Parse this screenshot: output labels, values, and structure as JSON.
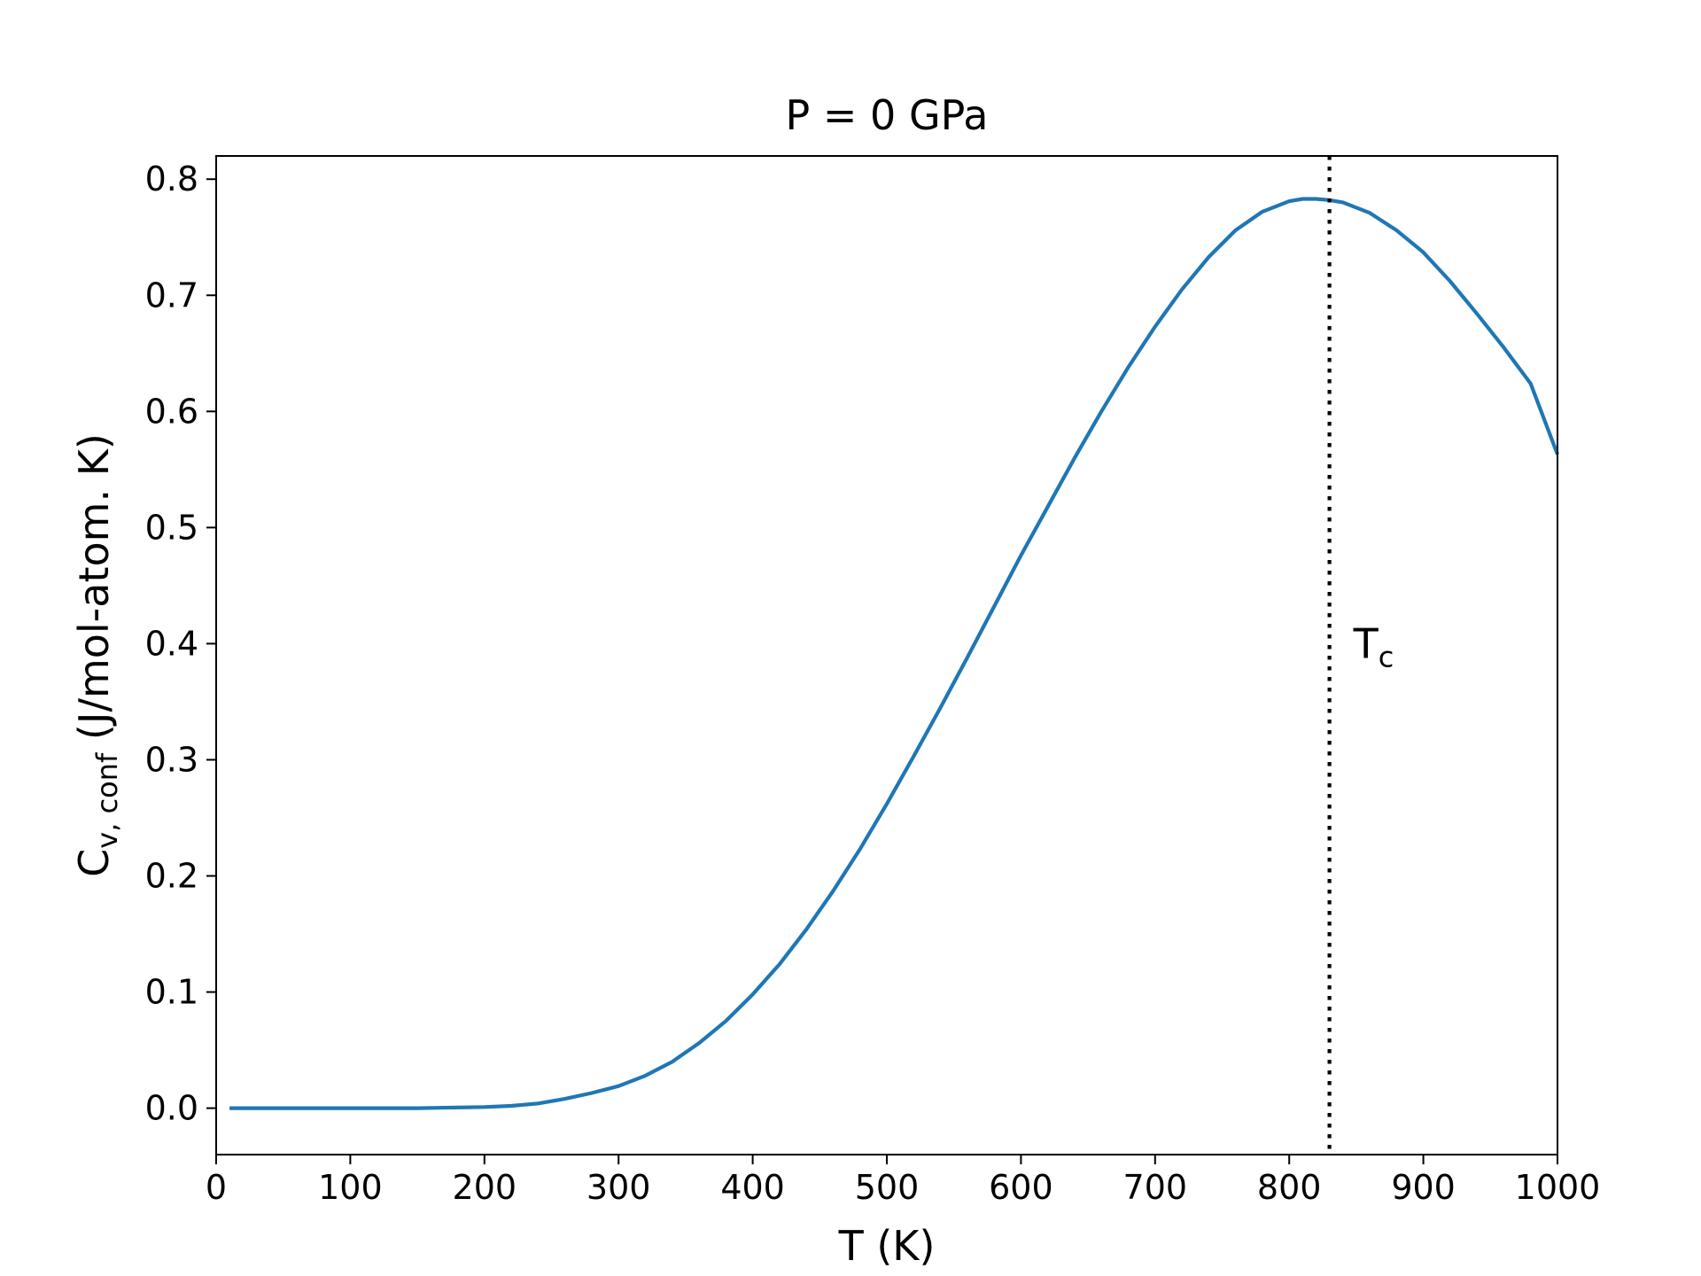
{
  "chart_data": {
    "type": "line",
    "title": "P = 0 GPa",
    "xlabel": "T (K)",
    "ylabel": {
      "main": "C",
      "sub": "v, conf",
      "rest": " (J/mol-atom. K)"
    },
    "xlim": [
      0,
      1000
    ],
    "ylim": [
      -0.04,
      0.82
    ],
    "xticks": [
      0,
      100,
      200,
      300,
      400,
      500,
      600,
      700,
      800,
      900,
      1000
    ],
    "xtick_labels": [
      "0",
      "100",
      "200",
      "300",
      "400",
      "500",
      "600",
      "700",
      "800",
      "900",
      "1000"
    ],
    "yticks": [
      0.0,
      0.1,
      0.2,
      0.3,
      0.4,
      0.5,
      0.6,
      0.7,
      0.8
    ],
    "ytick_labels": [
      "0.0",
      "0.1",
      "0.2",
      "0.3",
      "0.4",
      "0.5",
      "0.6",
      "0.7",
      "0.8"
    ],
    "grid": false,
    "colors": {
      "series": "#1f77b4",
      "annotation_line": "#000000"
    },
    "series": [
      {
        "x": [
          10,
          50,
          100,
          150,
          200,
          220,
          240,
          260,
          280,
          300,
          320,
          340,
          360,
          380,
          400,
          420,
          440,
          460,
          480,
          500,
          520,
          540,
          560,
          580,
          600,
          620,
          640,
          660,
          680,
          700,
          720,
          740,
          760,
          780,
          800,
          810,
          820,
          830,
          840,
          860,
          880,
          900,
          920,
          940,
          960,
          980,
          1000
        ],
        "y": [
          0.0,
          0.0,
          0.0,
          0.0,
          0.001,
          0.002,
          0.004,
          0.008,
          0.013,
          0.019,
          0.028,
          0.04,
          0.056,
          0.075,
          0.098,
          0.124,
          0.154,
          0.187,
          0.223,
          0.262,
          0.303,
          0.345,
          0.388,
          0.432,
          0.476,
          0.518,
          0.56,
          0.6,
          0.638,
          0.673,
          0.705,
          0.733,
          0.756,
          0.772,
          0.781,
          0.783,
          0.783,
          0.782,
          0.78,
          0.771,
          0.756,
          0.737,
          0.712,
          0.684,
          0.655,
          0.624,
          0.563
        ]
      }
    ],
    "annotations": [
      {
        "type": "vline",
        "x": 830,
        "style": "dotted",
        "label_main": "T",
        "label_sub": "c",
        "label_y": 0.4
      }
    ]
  }
}
